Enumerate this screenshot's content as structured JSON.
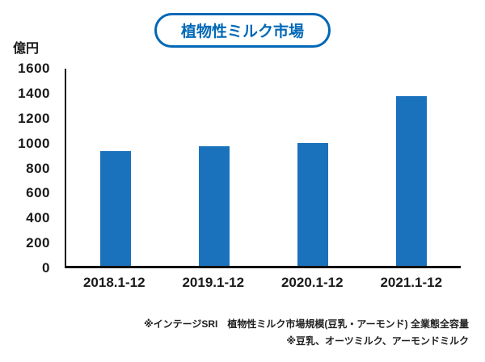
{
  "title": "植物性ミルク市場",
  "colors": {
    "accent": "#0068b7",
    "bar": "#1b72bc",
    "text": "#1a1a1a"
  },
  "chart_data": {
    "type": "bar",
    "title": "植物性ミルク市場",
    "ylabel": "億円",
    "xlabel": "",
    "categories": [
      "2018.1-12",
      "2019.1-12",
      "2020.1-12",
      "2021.1-12"
    ],
    "values": [
      930,
      970,
      1000,
      1380
    ],
    "ylim": [
      0,
      1600
    ],
    "yticks": [
      0,
      200,
      400,
      600,
      800,
      1000,
      1200,
      1400,
      1600
    ],
    "grid": false,
    "legend": "none",
    "bar_color": "#1b72bc"
  },
  "notes": {
    "line1": "※インテージSRI　植物性ミルク市場規模(豆乳・アーモンド) 全業態全容量",
    "line2": "※豆乳、オーツミルク、アーモンドミルク"
  }
}
